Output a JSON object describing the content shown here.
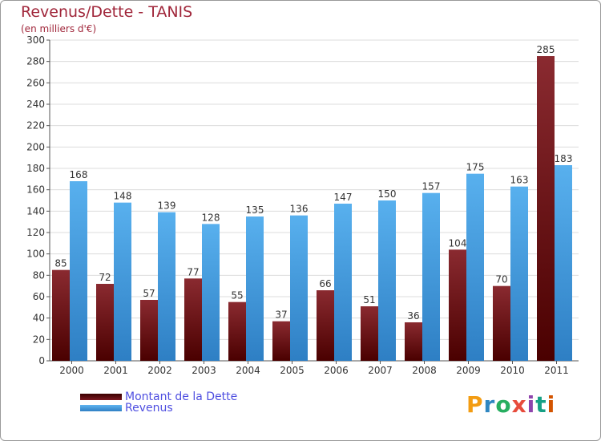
{
  "title": "Revenus/Dette - TANIS",
  "subtitle": "(en milliers d'€)",
  "logo": {
    "text": "Proxiti",
    "colors": [
      "#f39c12",
      "#2e86c1",
      "#27ae60",
      "#e74c3c",
      "#8e44ad",
      "#16a085",
      "#d35400"
    ]
  },
  "colors": {
    "dette": "#7a1820",
    "revenus": "#4aa3e6",
    "title": "#a0263a",
    "legend_text": "#4e4ee0"
  },
  "chart_data": {
    "type": "bar",
    "title": "Revenus/Dette - TANIS",
    "subtitle": "(en milliers d'€)",
    "xlabel": "",
    "ylabel": "",
    "categories": [
      "2000",
      "2001",
      "2002",
      "2003",
      "2004",
      "2005",
      "2006",
      "2007",
      "2008",
      "2009",
      "2010",
      "2011"
    ],
    "series": [
      {
        "name": "Montant de la Dette",
        "values": [
          85,
          72,
          57,
          77,
          55,
          37,
          66,
          51,
          36,
          104,
          70,
          285
        ]
      },
      {
        "name": "Revenus",
        "values": [
          168,
          148,
          139,
          128,
          135,
          136,
          147,
          150,
          157,
          175,
          163,
          183
        ]
      }
    ],
    "ylim": [
      0,
      300
    ],
    "yticks": [
      0,
      20,
      40,
      60,
      80,
      100,
      120,
      140,
      160,
      180,
      200,
      220,
      240,
      260,
      280,
      300
    ],
    "grid": true,
    "legend_position": "bottom-left"
  }
}
